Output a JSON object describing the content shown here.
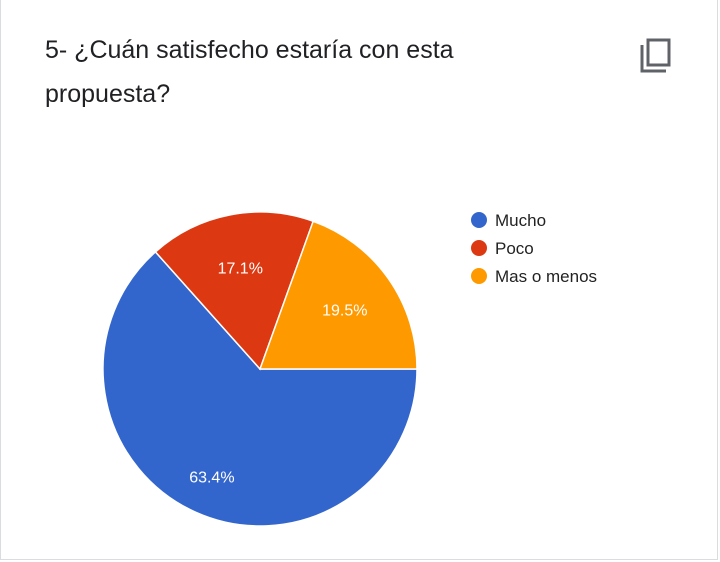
{
  "question": {
    "title": "5- ¿Cuán satisfecho estaría con esta propuesta?"
  },
  "icons": {
    "copy": "copy-icon"
  },
  "colors": {
    "mucho": "#3366cc",
    "poco": "#dc3912",
    "mas_o_menos": "#ff9900"
  },
  "chart_data": {
    "type": "pie",
    "slices": [
      {
        "label": "Mucho",
        "value": 63.4,
        "display": "63.4%",
        "color": "#3366cc"
      },
      {
        "label": "Poco",
        "value": 17.1,
        "display": "17.1%",
        "color": "#dc3912"
      },
      {
        "label": "Mas o menos",
        "value": 19.5,
        "display": "19.5%",
        "color": "#ff9900"
      }
    ],
    "legend": [
      "Mucho",
      "Poco",
      "Mas o menos"
    ],
    "legend_placement": "right"
  }
}
